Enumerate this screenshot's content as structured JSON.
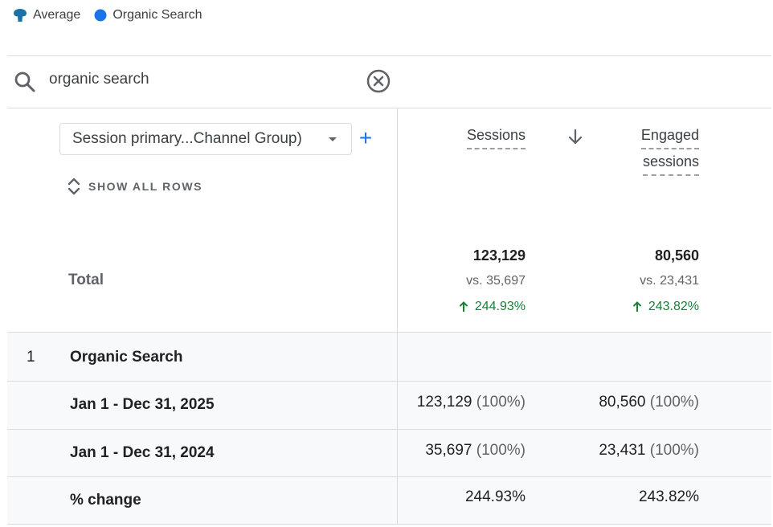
{
  "legend": {
    "average_label": "Average",
    "organic_label": "Organic Search",
    "average_color": "#1a73a8",
    "organic_color": "#1a73e8"
  },
  "search": {
    "query": "organic search"
  },
  "dimension": {
    "selector_label": "Session primary...Channel Group)",
    "show_all_rows": "SHOW ALL ROWS"
  },
  "columns": {
    "sessions": "Sessions",
    "engaged_line1": "Engaged",
    "engaged_line2": "sessions"
  },
  "total": {
    "label": "Total",
    "sessions": {
      "value": "123,129",
      "vs": "vs. 35,697",
      "change": "244.93%"
    },
    "engaged": {
      "value": "80,560",
      "vs": "vs. 23,431",
      "change": "243.82%"
    }
  },
  "rows": [
    {
      "num": "1",
      "label": "Organic Search"
    },
    {
      "label": "Jan 1 - Dec 31, 2025",
      "sessions": "123,129",
      "sessions_pct": "(100%)",
      "engaged": "80,560",
      "engaged_pct": "(100%)"
    },
    {
      "label": "Jan 1 - Dec 31, 2024",
      "sessions": "35,697",
      "sessions_pct": "(100%)",
      "engaged": "23,431",
      "engaged_pct": "(100%)"
    },
    {
      "label": "% change",
      "sessions": "244.93%",
      "engaged": "243.82%"
    }
  ],
  "colors": {
    "positive": "#188038",
    "accent": "#1a73e8"
  }
}
